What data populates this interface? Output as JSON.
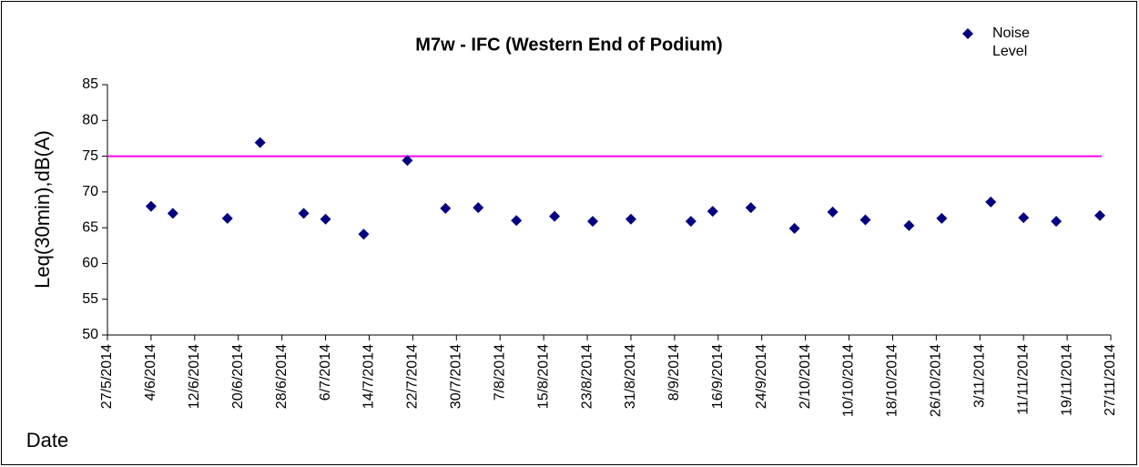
{
  "chart_data": {
    "type": "scatter",
    "title": "M7w - IFC (Western End of Podium)",
    "x_label": "Date",
    "y_label": "Leq(30min),dB(A)",
    "series": [
      {
        "name": "Noise Level",
        "color": "#000080",
        "x": [
          "2014-06-04",
          "2014-06-08",
          "2014-06-18",
          "2014-06-24",
          "2014-07-02",
          "2014-07-06",
          "2014-07-13",
          "2014-07-21",
          "2014-07-28",
          "2014-08-03",
          "2014-08-10",
          "2014-08-17",
          "2014-08-24",
          "2014-08-31",
          "2014-09-11",
          "2014-09-15",
          "2014-09-22",
          "2014-09-30",
          "2014-10-07",
          "2014-10-13",
          "2014-10-21",
          "2014-10-27",
          "2014-11-05",
          "2014-11-11",
          "2014-11-17",
          "2014-11-25"
        ],
        "values": [
          68.0,
          67.0,
          66.3,
          76.9,
          67.0,
          66.2,
          64.1,
          74.4,
          67.7,
          67.8,
          66.0,
          66.6,
          65.9,
          66.2,
          65.9,
          67.3,
          67.8,
          64.9,
          67.2,
          66.1,
          65.3,
          66.3,
          68.6,
          66.4,
          65.9,
          66.7
        ]
      }
    ],
    "reference_line": {
      "value": 75,
      "color": "#ff00ff"
    },
    "xlim": [
      "2014-05-27",
      "2014-11-27"
    ],
    "xticks": [
      {
        "value": "2014-05-27",
        "label": "27/5/2014"
      },
      {
        "value": "2014-06-04",
        "label": "4/6/2014"
      },
      {
        "value": "2014-06-12",
        "label": "12/6/2014"
      },
      {
        "value": "2014-06-20",
        "label": "20/6/2014"
      },
      {
        "value": "2014-06-28",
        "label": "28/6/2014"
      },
      {
        "value": "2014-07-06",
        "label": "6/7/2014"
      },
      {
        "value": "2014-07-14",
        "label": "14/7/2014"
      },
      {
        "value": "2014-07-22",
        "label": "22/7/2014"
      },
      {
        "value": "2014-07-30",
        "label": "30/7/2014"
      },
      {
        "value": "2014-08-07",
        "label": "7/8/2014"
      },
      {
        "value": "2014-08-15",
        "label": "15/8/2014"
      },
      {
        "value": "2014-08-23",
        "label": "23/8/2014"
      },
      {
        "value": "2014-08-31",
        "label": "31/8/2014"
      },
      {
        "value": "2014-09-08",
        "label": "8/9/2014"
      },
      {
        "value": "2014-09-16",
        "label": "16/9/2014"
      },
      {
        "value": "2014-09-24",
        "label": "24/9/2014"
      },
      {
        "value": "2014-10-02",
        "label": "2/10/2014"
      },
      {
        "value": "2014-10-10",
        "label": "10/10/2014"
      },
      {
        "value": "2014-10-18",
        "label": "18/10/2014"
      },
      {
        "value": "2014-10-26",
        "label": "26/10/2014"
      },
      {
        "value": "2014-11-03",
        "label": "3/11/2014"
      },
      {
        "value": "2014-11-11",
        "label": "11/11/2014"
      },
      {
        "value": "2014-11-19",
        "label": "19/11/2014"
      },
      {
        "value": "2014-11-27",
        "label": "27/11/2014"
      }
    ],
    "ylim": [
      50,
      85
    ],
    "yticks": [
      50,
      55,
      60,
      65,
      70,
      75,
      80,
      85
    ],
    "legend": "top-right"
  }
}
